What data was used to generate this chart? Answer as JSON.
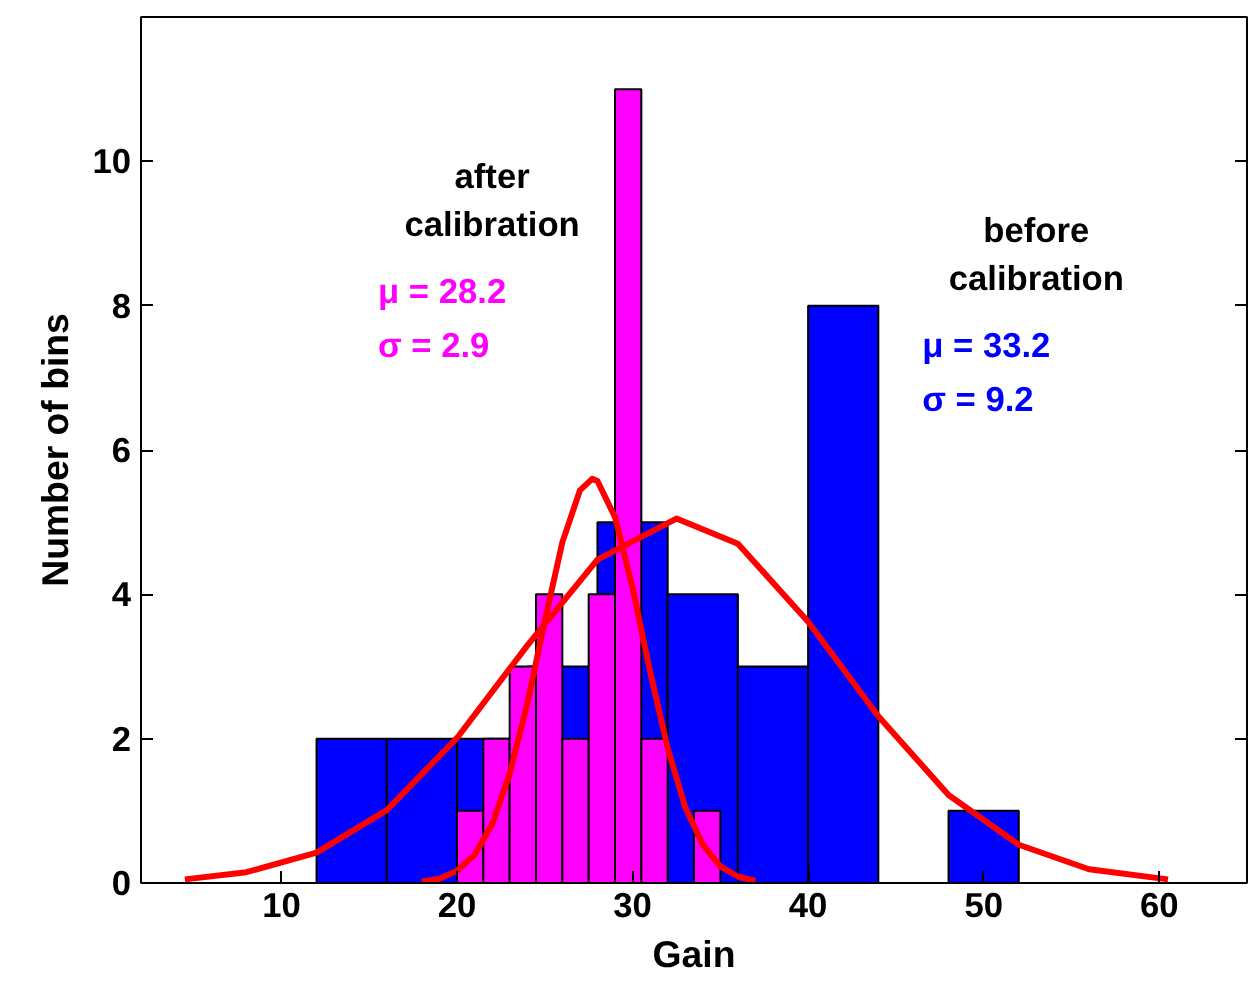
{
  "chart_data": {
    "type": "histogram",
    "xlabel": "Gain",
    "ylabel": "Number of bins",
    "xlim": [
      2,
      65
    ],
    "ylim": [
      0,
      12
    ],
    "xticks": [
      10,
      20,
      30,
      40,
      50,
      60
    ],
    "yticks": [
      0,
      2,
      4,
      6,
      8,
      10
    ],
    "grid": false,
    "series": [
      {
        "color": "#0000ff",
        "bins": [
          12,
          16,
          20,
          24,
          28,
          32,
          36,
          40,
          44,
          48,
          52
        ],
        "values": [
          2,
          2,
          2,
          3,
          5,
          4,
          3,
          8,
          0,
          1
        ]
      },
      {
        "color": "#ff00ff",
        "bins": [
          20,
          21.5,
          23,
          24.5,
          26,
          27.5,
          29,
          30.5,
          32,
          33.5,
          35
        ],
        "values": [
          1,
          2,
          3,
          4,
          2,
          4,
          11,
          2,
          0,
          1
        ]
      },
      {
        "type": "line",
        "color": "#ff0000",
        "x": [
          18,
          19,
          20,
          21,
          22,
          23,
          24,
          25,
          26,
          27,
          27.7,
          28,
          29,
          30,
          31,
          32,
          33,
          34,
          35,
          36,
          37
        ],
        "values": [
          0.02,
          0.06,
          0.17,
          0.39,
          0.81,
          1.51,
          2.48,
          3.63,
          4.72,
          5.44,
          5.6,
          5.57,
          5.07,
          4.09,
          2.93,
          1.87,
          1.05,
          0.53,
          0.23,
          0.09,
          0.03
        ]
      },
      {
        "type": "line",
        "color": "#ff0000",
        "x": [
          4.5,
          8,
          12,
          16,
          20,
          24,
          28,
          32.5,
          36,
          40,
          44,
          48,
          52,
          56,
          60.5
        ],
        "values": [
          0.05,
          0.15,
          0.42,
          1.01,
          2.01,
          3.29,
          4.48,
          5.05,
          4.7,
          3.62,
          2.31,
          1.22,
          0.53,
          0.19,
          0.05
        ]
      }
    ],
    "annotations": [
      "after\ncalibration",
      "μ = 28.2",
      "σ = 2.9",
      "before\ncalibration",
      "μ = 33.2",
      "σ = 9.2"
    ]
  }
}
